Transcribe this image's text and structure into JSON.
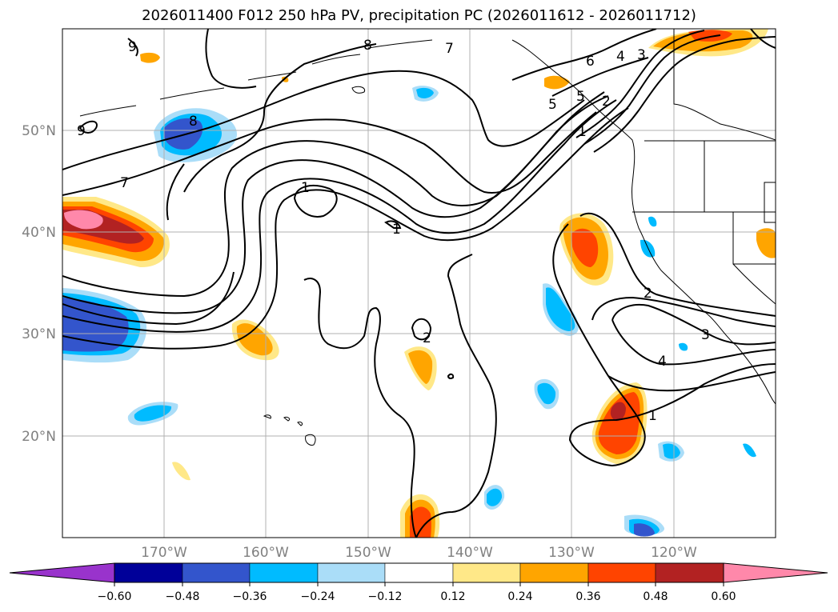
{
  "title": "2026011400 F012 250 hPa PV, precipitation PC (2026011612 - 2026011712)",
  "lat_labels": [
    "50°N",
    "40°N",
    "30°N",
    "20°N"
  ],
  "lon_labels": [
    "170°W",
    "160°W",
    "150°W",
    "140°W",
    "130°W",
    "120°W"
  ],
  "colorbar": {
    "ticks": [
      "−0.60",
      "−0.48",
      "−0.36",
      "−0.24",
      "−0.12",
      "0.12",
      "0.24",
      "0.36",
      "0.48",
      "0.60"
    ],
    "colors": [
      "#9933cc",
      "#000099",
      "#3355cc",
      "#00bbff",
      "#aaddf8",
      "#ffffff",
      "#ffe888",
      "#ffa500",
      "#ff4400",
      "#b22222",
      "#ff88aa"
    ]
  },
  "contour_labels": [
    "9",
    "8",
    "7",
    "6",
    "5",
    "4",
    "3",
    "2",
    "1"
  ],
  "colors": {
    "contour": "#000000",
    "grid": "#b0b0b0",
    "coast": "#000000"
  }
}
